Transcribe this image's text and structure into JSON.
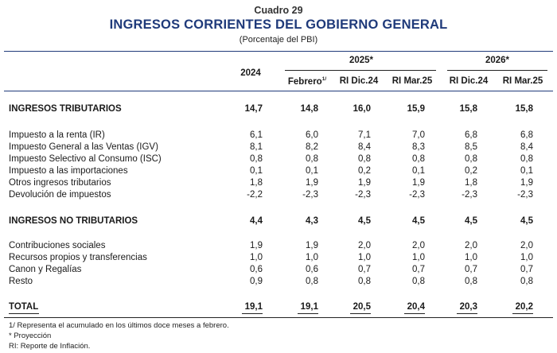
{
  "header": {
    "cuadro": "Cuadro 29",
    "title": "INGRESOS CORRIENTES DEL GOBIERNO GENERAL",
    "subtitle": "(Porcentaje del PBI)"
  },
  "columns": {
    "y2024": "2024",
    "y2025": "2025*",
    "y2026": "2026*",
    "febrero": "Febrero",
    "febrero_sup": "1/",
    "ri_dic_2025": "RI Dic.24",
    "ri_mar_2025": "RI Mar.25",
    "ri_dic_2026": "RI Dic.24",
    "ri_mar_2026": "RI Mar.25"
  },
  "rows": [
    {
      "label": "INGRESOS TRIBUTARIOS",
      "values": [
        "14,7",
        "14,8",
        "16,0",
        "15,9",
        "15,8",
        "15,8"
      ]
    },
    {
      "label": "Impuesto a la renta (IR)",
      "values": [
        "6,1",
        "6,0",
        "7,1",
        "7,0",
        "6,8",
        "6,8"
      ]
    },
    {
      "label": "Impuesto General a las Ventas (IGV)",
      "values": [
        "8,1",
        "8,2",
        "8,4",
        "8,3",
        "8,5",
        "8,4"
      ]
    },
    {
      "label": "Impuesto Selectivo al Consumo (ISC)",
      "values": [
        "0,8",
        "0,8",
        "0,8",
        "0,8",
        "0,8",
        "0,8"
      ]
    },
    {
      "label": "Impuesto a las importaciones",
      "values": [
        "0,1",
        "0,1",
        "0,2",
        "0,1",
        "0,2",
        "0,1"
      ]
    },
    {
      "label": "Otros ingresos tributarios",
      "values": [
        "1,8",
        "1,9",
        "1,9",
        "1,9",
        "1,8",
        "1,9"
      ]
    },
    {
      "label": "Devolución de impuestos",
      "values": [
        "-2,2",
        "-2,3",
        "-2,3",
        "-2,3",
        "-2,3",
        "-2,3"
      ]
    },
    {
      "label": "INGRESOS NO TRIBUTARIOS",
      "values": [
        "4,4",
        "4,3",
        "4,5",
        "4,5",
        "4,5",
        "4,5"
      ]
    },
    {
      "label": "Contribuciones sociales",
      "values": [
        "1,9",
        "1,9",
        "2,0",
        "2,0",
        "2,0",
        "2,0"
      ]
    },
    {
      "label": "Recursos propios y transferencias",
      "values": [
        "1,0",
        "1,0",
        "1,0",
        "1,0",
        "1,0",
        "1,0"
      ]
    },
    {
      "label": "Canon y Regalías",
      "values": [
        "0,6",
        "0,6",
        "0,7",
        "0,7",
        "0,7",
        "0,7"
      ]
    },
    {
      "label": "Resto",
      "values": [
        "0,9",
        "0,8",
        "0,8",
        "0,8",
        "0,8",
        "0,8"
      ]
    },
    {
      "label": "TOTAL",
      "values": [
        "19,1",
        "19,1",
        "20,5",
        "20,4",
        "20,3",
        "20,2"
      ]
    }
  ],
  "notes": [
    "1/  Representa el acumulado en los últimos doce meses a febrero.",
    "* Proyección",
    "RI: Reporte de Inflación."
  ]
}
